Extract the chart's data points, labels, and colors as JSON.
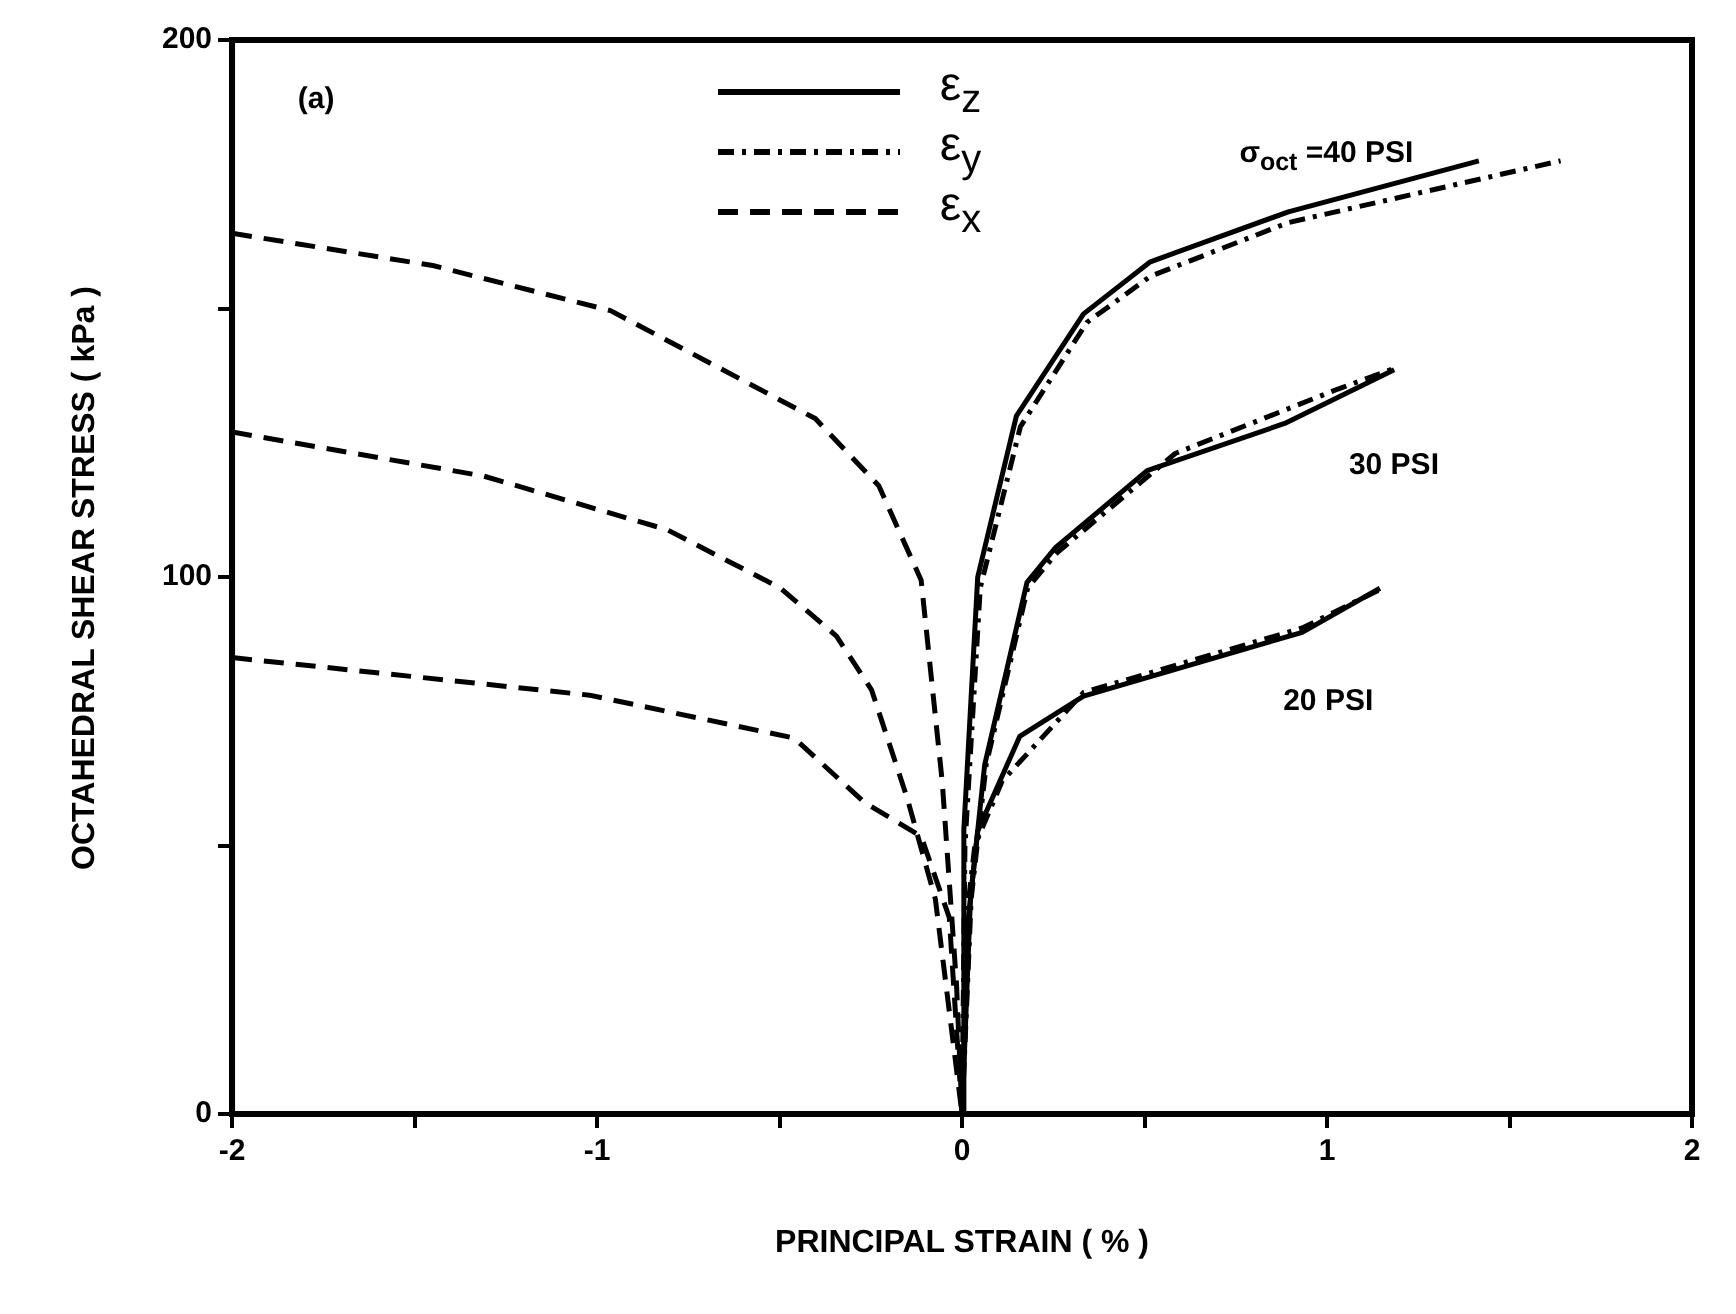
{
  "chart_data": {
    "type": "line",
    "xlabel": "PRINCIPAL STRAIN ( % )",
    "ylabel": "OCTAHEDRAL SHEAR STRESS ( kPa )",
    "xlim": [
      -2,
      2
    ],
    "ylim": [
      0,
      200
    ],
    "xticks": [
      -2,
      {
        "value": -1.5,
        "label": null
      },
      -1,
      {
        "value": -0.5,
        "label": null
      },
      0,
      {
        "value": 0.5,
        "label": null
      },
      1,
      {
        "value": 1.5,
        "label": null
      },
      2
    ],
    "yticks": [
      0,
      {
        "value": 50,
        "label": null
      },
      100,
      {
        "value": 150,
        "label": null
      },
      200
    ],
    "grid": false,
    "legend": "top",
    "marker": "none",
    "annotations": [
      "(a)",
      "σ$_{oct}$ =40 PSI",
      "30 PSI",
      "20 PSI"
    ],
    "series": [
      {
        "name": "ε$_{z}$",
        "color": "#000000",
        "line_style": "solid",
        "x": [
          0,
          0.005,
          0.043,
          0.149,
          0.333,
          0.516,
          0.894,
          1.416
        ],
        "values": [
          0,
          53,
          100,
          130,
          149,
          158.7,
          168,
          177.5
        ]
      },
      {
        "name": "ε$_{y}$",
        "color": "#000000",
        "line_style": "dashdot",
        "x": [
          0,
          0.008,
          0.05,
          0.16,
          0.342,
          0.516,
          0.894,
          1.64
        ],
        "values": [
          0,
          50,
          98,
          128,
          147.4,
          156,
          166,
          177.5
        ]
      },
      {
        "name": "ε$_{x}$",
        "color": "#000000",
        "line_style": "dashed",
        "x": [
          -2,
          -1.45,
          -0.963,
          -0.402,
          -0.228,
          -0.112,
          -0.054,
          -0.015,
          0
        ],
        "values": [
          164,
          158,
          149.6,
          129.5,
          117,
          99.4,
          61.7,
          24,
          0
        ]
      },
      {
        "color": "#000000",
        "line_style": "solid",
        "x": [
          0,
          0.023,
          0.062,
          0.178,
          0.255,
          0.507,
          0.884,
          1.184
        ],
        "values": [
          0,
          40,
          65,
          99,
          105.4,
          119.8,
          128.6,
          138.6
        ]
      },
      {
        "color": "#000000",
        "line_style": "dashdot",
        "x": [
          0,
          0.025,
          0.066,
          0.18,
          0.26,
          0.584,
          1.03,
          1.19
        ],
        "values": [
          0,
          40,
          65,
          98,
          104.5,
          123,
          135,
          139
        ]
      },
      {
        "color": "#000000",
        "line_style": "dashed",
        "x": [
          -2,
          -1.311,
          -0.808,
          -0.499,
          -0.344,
          -0.248,
          -0.151,
          -0.073,
          0
        ],
        "values": [
          127,
          118.8,
          108.8,
          98,
          89,
          79,
          59,
          40,
          0
        ]
      },
      {
        "color": "#000000",
        "line_style": "solid",
        "x": [
          0,
          0.015,
          0.043,
          0.158,
          0.333,
          0.932,
          1.145
        ],
        "values": [
          0,
          35,
          52.7,
          70.3,
          77.8,
          89.7,
          97.9
        ]
      },
      {
        "color": "#000000",
        "line_style": "dashdot",
        "x": [
          0,
          0.01,
          0.035,
          0.11,
          0.333,
          0.932,
          1.14
        ],
        "values": [
          0,
          35,
          50,
          62,
          78.5,
          90.5,
          97.5
        ]
      },
      {
        "color": "#000000",
        "line_style": "dashed",
        "x": [
          -2,
          -1.021,
          -0.46,
          -0.267,
          -0.112,
          -0.035,
          0
        ],
        "values": [
          85,
          78,
          70,
          58,
          51.7,
          36.6,
          0
        ]
      }
    ]
  }
}
